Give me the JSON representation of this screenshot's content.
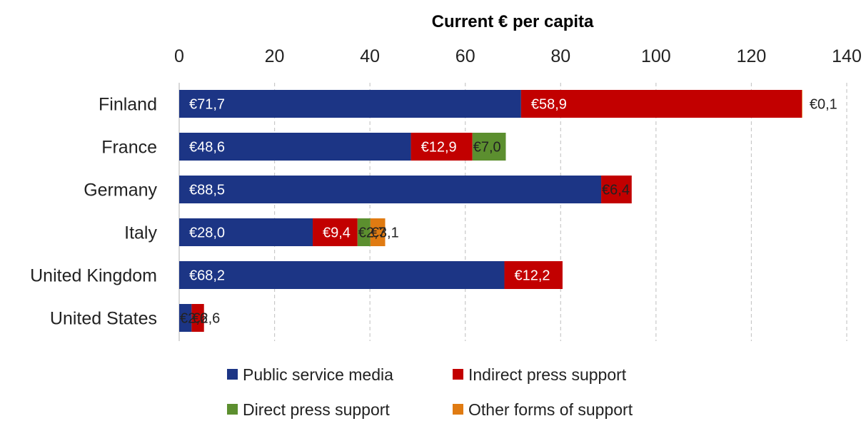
{
  "chart_data": {
    "type": "bar",
    "orientation": "horizontal",
    "stacked": true,
    "title": "",
    "xlabel": "Current € per capita",
    "xlim": [
      0,
      140
    ],
    "xticks": [
      "0",
      "20",
      "40",
      "60",
      "80",
      "100",
      "120",
      "140"
    ],
    "grid": "vertical-dashed",
    "legend_position": "bottom",
    "categories": [
      "Finland",
      "France",
      "Germany",
      "Italy",
      "United Kingdom",
      "United States"
    ],
    "series": [
      {
        "name": "Public service media",
        "color": "#1c3585",
        "values": [
          71.7,
          48.6,
          88.5,
          28.0,
          68.2,
          2.6
        ],
        "labels": [
          "€71,7",
          "€48,6",
          "€88,5",
          "€28,0",
          "€68,2",
          "€2,6"
        ]
      },
      {
        "name": "Indirect press support",
        "color": "#c20000",
        "values": [
          58.9,
          12.9,
          6.4,
          9.4,
          12.2,
          2.6
        ],
        "labels": [
          "€58,9",
          "€12,9",
          "€6,4",
          "€9,4",
          "€12,2",
          "€2,6"
        ]
      },
      {
        "name": "Direct press support",
        "color": "#5c8f2f",
        "values": [
          0,
          7.0,
          0,
          2.7,
          0,
          0
        ],
        "labels": [
          "",
          "€7,0",
          "",
          "€2,7",
          "",
          ""
        ]
      },
      {
        "name": "Other forms of support",
        "color": "#e07b12",
        "values": [
          0.1,
          0,
          0,
          3.1,
          0,
          0
        ],
        "labels": [
          "€0,1",
          "",
          "",
          "€3,1",
          "",
          ""
        ]
      }
    ]
  }
}
